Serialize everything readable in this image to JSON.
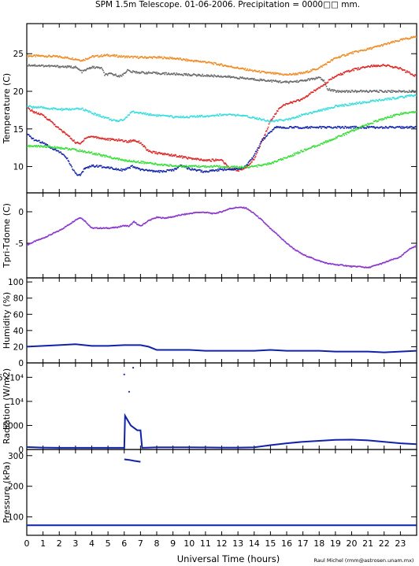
{
  "header": {
    "title": "SPM 1.5m Telescope. 01-06-2006. Precipitation = 0000□□ mm.",
    "credit": "Raul Michel (rmm@astrosen.unam.mx)"
  },
  "x_axis": {
    "label": "Universal Time (hours)",
    "ticks": [
      "0",
      "1",
      "2",
      "3",
      "4",
      "5",
      "6",
      "7",
      "8",
      "9",
      "10",
      "11",
      "12",
      "13",
      "14",
      "15",
      "16",
      "17",
      "18",
      "19",
      "20",
      "21",
      "22",
      "23"
    ],
    "range": [
      0,
      24
    ]
  },
  "chart_data": [
    {
      "type": "scatter",
      "panel": "temperature",
      "ylabel": "Temperature (C)",
      "ylim": [
        6.5,
        29
      ],
      "yticks": [
        10,
        15,
        20,
        25
      ],
      "series": [
        {
          "color": "#ee8a22",
          "x": [
            0,
            1,
            2,
            3,
            3.4,
            4,
            5,
            6,
            7,
            8,
            9,
            10,
            11,
            12,
            13,
            14,
            15,
            16,
            17,
            18,
            19,
            20,
            21,
            22,
            23,
            24
          ],
          "y": [
            24.7,
            24.7,
            24.6,
            24.3,
            24.1,
            24.6,
            24.8,
            24.6,
            24.5,
            24.5,
            24.4,
            24.1,
            23.9,
            23.5,
            23.1,
            22.7,
            22.4,
            22.2,
            22.4,
            23.1,
            24.4,
            25.1,
            25.6,
            26.2,
            26.8,
            27.3
          ]
        },
        {
          "color": "#666666",
          "x": [
            0,
            1,
            2,
            3,
            3.4,
            4,
            4.6,
            4.8,
            5.2,
            5.8,
            6.2,
            6.4,
            7,
            8,
            9,
            10,
            11,
            12,
            13,
            14,
            15,
            16,
            17,
            18,
            18.3,
            18.5,
            19,
            20,
            21,
            22,
            23,
            24
          ],
          "y": [
            23.5,
            23.4,
            23.3,
            23.2,
            22.6,
            23.2,
            23.1,
            22.2,
            22.3,
            22.0,
            22.8,
            22.6,
            22.5,
            22.4,
            22.3,
            22.2,
            22.1,
            22.0,
            21.8,
            21.6,
            21.4,
            21.2,
            21.4,
            21.8,
            21.4,
            20.3,
            20.0,
            20.0,
            20.0,
            20.0,
            20.0,
            20.0
          ]
        },
        {
          "color": "#dd2222",
          "x": [
            0,
            0.5,
            1,
            1.5,
            2,
            2.5,
            3,
            3.3,
            3.6,
            4,
            5,
            5.8,
            6.2,
            6.6,
            7,
            7.5,
            8,
            9,
            10,
            11,
            12,
            12.5,
            13,
            13.5,
            14,
            14.5,
            15,
            15.5,
            16,
            16.5,
            17,
            18,
            19,
            20,
            21,
            22,
            23,
            24
          ],
          "y": [
            17.8,
            17.2,
            16.8,
            16.0,
            15.0,
            14.2,
            13.2,
            13.0,
            13.8,
            14.0,
            13.6,
            13.5,
            13.3,
            13.5,
            13.2,
            12.0,
            11.8,
            11.5,
            11.1,
            10.8,
            10.9,
            9.7,
            9.5,
            9.8,
            11.0,
            13.5,
            16.0,
            17.6,
            18.4,
            18.6,
            19.0,
            20.5,
            22.0,
            22.8,
            23.3,
            23.5,
            23.0,
            22.0
          ]
        },
        {
          "color": "#33dddd",
          "x": [
            0,
            1,
            2,
            3,
            3.4,
            3.8,
            4,
            5,
            5.5,
            6,
            6.5,
            7,
            8,
            9,
            10,
            11,
            12,
            13,
            14,
            15,
            16,
            17,
            18,
            19,
            20,
            21,
            22,
            23,
            24
          ],
          "y": [
            18.0,
            17.8,
            17.6,
            17.6,
            17.7,
            17.3,
            17.1,
            16.4,
            16.0,
            16.3,
            17.3,
            17.1,
            16.8,
            16.6,
            16.6,
            16.7,
            16.9,
            16.8,
            16.5,
            16.0,
            16.2,
            16.9,
            17.4,
            18.0,
            18.3,
            18.6,
            18.9,
            19.2,
            19.5
          ]
        },
        {
          "color": "#1122aa",
          "x": [
            0,
            0.5,
            1,
            1.5,
            2,
            2.5,
            3,
            3.3,
            3.6,
            4,
            5,
            6,
            6.5,
            7,
            8,
            9,
            9.5,
            10,
            11,
            12,
            13,
            13.5,
            14,
            14.5,
            15,
            15.3,
            15.6,
            16,
            17,
            18,
            19,
            20,
            21,
            22,
            23,
            24
          ],
          "y": [
            14.3,
            13.5,
            13.2,
            12.5,
            12.0,
            11.0,
            9.0,
            8.8,
            9.8,
            10.1,
            9.9,
            9.5,
            10.0,
            9.6,
            9.3,
            9.5,
            10.2,
            9.7,
            9.3,
            9.6,
            9.7,
            10.0,
            11.5,
            13.5,
            14.6,
            15.2,
            15.2,
            15.2,
            15.2,
            15.2,
            15.2,
            15.2,
            15.2,
            15.2,
            15.2,
            15.2
          ]
        },
        {
          "color": "#33dd33",
          "x": [
            0,
            1,
            2,
            3,
            4,
            5,
            6,
            7,
            8,
            9,
            10,
            11,
            12,
            13,
            14,
            15,
            16,
            17,
            18,
            19,
            20,
            21,
            22,
            23,
            24
          ],
          "y": [
            12.7,
            12.7,
            12.5,
            12.2,
            11.8,
            11.3,
            10.8,
            10.6,
            10.3,
            10.1,
            10.0,
            10.0,
            10.0,
            9.9,
            10.0,
            10.4,
            11.2,
            12.1,
            12.9,
            13.8,
            14.7,
            15.6,
            16.4,
            17.0,
            17.3
          ]
        }
      ]
    },
    {
      "type": "scatter",
      "panel": "tpri-tdome",
      "ylabel": "Tpri-Tdome (C)",
      "ylim": [
        -10.5,
        3
      ],
      "yticks": [
        -5,
        0
      ],
      "series": [
        {
          "color": "#8833cc",
          "x": [
            0,
            0.5,
            1,
            1.5,
            2,
            2.5,
            3,
            3.3,
            3.6,
            4,
            5,
            5.5,
            6,
            6.3,
            6.6,
            7,
            7.5,
            8,
            8.5,
            9,
            9.5,
            10,
            10.5,
            11,
            11.5,
            12,
            12.5,
            13,
            13.5,
            14,
            14.5,
            15,
            15.5,
            16,
            16.5,
            17,
            17.5,
            18,
            18.5,
            19,
            19.5,
            20,
            20.5,
            21,
            21.5,
            22,
            22.5,
            23,
            23.5,
            24
          ],
          "y": [
            -5.3,
            -4.7,
            -4.2,
            -3.6,
            -3.0,
            -2.2,
            -1.3,
            -0.9,
            -1.5,
            -2.6,
            -2.6,
            -2.5,
            -2.2,
            -2.3,
            -1.6,
            -2.3,
            -1.4,
            -0.9,
            -1.0,
            -0.8,
            -0.5,
            -0.3,
            -0.1,
            -0.1,
            -0.3,
            0.0,
            0.5,
            0.7,
            0.6,
            -0.3,
            -1.4,
            -2.7,
            -3.8,
            -5.0,
            -6.0,
            -6.8,
            -7.3,
            -7.8,
            -8.2,
            -8.4,
            -8.5,
            -8.7,
            -8.7,
            -8.9,
            -8.5,
            -8.1,
            -7.6,
            -7.2,
            -6.0,
            -5.4
          ]
        }
      ]
    },
    {
      "type": "line",
      "panel": "humidity",
      "ylabel": "Humidity (%)",
      "ylim": [
        0,
        105
      ],
      "yticks": [
        0,
        20,
        40,
        60,
        80,
        100
      ],
      "series": [
        {
          "color": "#1122aa",
          "x": [
            0,
            1,
            2,
            3,
            4,
            5,
            6,
            7,
            7.5,
            8,
            9,
            10,
            11,
            12,
            13,
            14,
            15,
            16,
            17,
            18,
            19,
            20,
            21,
            22,
            23,
            24
          ],
          "y": [
            20,
            21,
            22,
            23,
            21,
            21,
            22,
            22,
            20,
            16,
            16,
            16,
            15,
            15,
            15,
            15,
            16,
            15,
            15,
            15,
            14,
            14,
            14,
            13,
            14,
            15
          ]
        }
      ]
    },
    {
      "type": "scatter",
      "panel": "radiation",
      "ylabel": "Radiation (W/m2)",
      "ylim": [
        0,
        18000
      ],
      "yticks": [
        0,
        5000,
        10000,
        15000
      ],
      "yticklabels": [
        "0",
        "5000",
        "10⁴",
        "1.5×10⁴"
      ],
      "series": [
        {
          "color": "#1122aa",
          "x": [
            0,
            1,
            2,
            3,
            4,
            5,
            6,
            6.05,
            6.4,
            6.8,
            6.9,
            7,
            7.1,
            7.5,
            8,
            9,
            10,
            11,
            12,
            13,
            14,
            15,
            16,
            17,
            18,
            19,
            20,
            21,
            22,
            23,
            24
          ],
          "y": [
            500,
            400,
            350,
            350,
            350,
            350,
            350,
            7000,
            5000,
            4000,
            4000,
            4000,
            350,
            400,
            450,
            450,
            450,
            420,
            400,
            400,
            450,
            900,
            1300,
            1600,
            1800,
            2000,
            2050,
            1900,
            1600,
            1300,
            1100
          ]
        },
        {
          "color": "#1122aa",
          "x": [
            6.0,
            6.3,
            6.55
          ],
          "y": [
            15600,
            12000,
            17000
          ]
        }
      ]
    },
    {
      "type": "line",
      "panel": "pressure",
      "ylabel": "Pressure (kPa)",
      "ylim": [
        40,
        320
      ],
      "yticks": [
        100,
        200,
        300
      ],
      "series": [
        {
          "color": "#1122aa",
          "x": [
            0,
            24
          ],
          "y": [
            73,
            73
          ]
        },
        {
          "color": "#1122aa",
          "x": [
            6.0,
            6.3,
            6.6,
            7.0
          ],
          "y": [
            288,
            286,
            283,
            280
          ]
        }
      ]
    }
  ]
}
